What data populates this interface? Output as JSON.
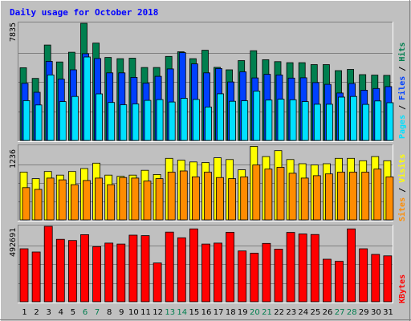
{
  "title": "Daily usage for October 2018",
  "colors": {
    "background": "#c0c0c0",
    "title": "#0000ff",
    "grid": "#808080",
    "hits": "#007f4f",
    "files": "#0040ff",
    "pages": "#00e0ff",
    "visits": "#ffff00",
    "sites": "#ff8c00",
    "kbytes": "#ff0000",
    "weekend_label": "#007f4f",
    "weekday_label": "#000000"
  },
  "chart_data": [
    {
      "type": "bar",
      "panel": "hits-files-pages",
      "categories": [
        "1",
        "2",
        "3",
        "4",
        "5",
        "6",
        "7",
        "8",
        "9",
        "10",
        "11",
        "12",
        "13",
        "14",
        "15",
        "16",
        "17",
        "18",
        "19",
        "20",
        "21",
        "22",
        "23",
        "24",
        "25",
        "26",
        "27",
        "28",
        "29",
        "30",
        "31"
      ],
      "ylim": [
        0,
        7835
      ],
      "max_label": "7835",
      "series": [
        {
          "name": "Hits",
          "values": [
            4860,
            4150,
            6380,
            5250,
            5900,
            7835,
            6510,
            5550,
            5470,
            5500,
            4880,
            4880,
            5620,
            5930,
            5470,
            6030,
            4890,
            4720,
            5340,
            6000,
            5400,
            5270,
            5200,
            5200,
            5070,
            5070,
            4670,
            4750,
            4400,
            4370,
            4350
          ]
        },
        {
          "name": "Files",
          "values": [
            3820,
            3220,
            5290,
            4100,
            4720,
            5800,
            5480,
            4520,
            4520,
            4220,
            3830,
            4290,
            4780,
            5870,
            5120,
            4520,
            4810,
            3910,
            4590,
            4180,
            4420,
            4380,
            4170,
            4190,
            3870,
            3750,
            3170,
            3810,
            3360,
            3470,
            3600
          ]
        },
        {
          "name": "Pages",
          "values": [
            2660,
            2370,
            4380,
            2600,
            2940,
            5580,
            3110,
            2540,
            2390,
            2440,
            2680,
            2730,
            2570,
            2820,
            2740,
            2240,
            3120,
            2620,
            2650,
            3300,
            2700,
            2760,
            2720,
            2600,
            2420,
            2420,
            2900,
            2940,
            2410,
            2640,
            2520
          ]
        }
      ]
    },
    {
      "type": "bar",
      "panel": "visits-sites",
      "categories": [
        "1",
        "2",
        "3",
        "4",
        "5",
        "6",
        "7",
        "8",
        "9",
        "10",
        "11",
        "12",
        "13",
        "14",
        "15",
        "16",
        "17",
        "18",
        "19",
        "20",
        "21",
        "22",
        "23",
        "24",
        "25",
        "26",
        "27",
        "28",
        "29",
        "30",
        "31"
      ],
      "ylim": [
        0,
        1236
      ],
      "max_label": "1236",
      "series": [
        {
          "name": "Visits",
          "values": [
            800,
            690,
            810,
            750,
            810,
            860,
            950,
            750,
            730,
            750,
            830,
            760,
            1030,
            1000,
            970,
            960,
            1040,
            1010,
            840,
            1230,
            1060,
            1160,
            1010,
            940,
            920,
            940,
            1030,
            1030,
            990,
            1060,
            990
          ]
        },
        {
          "name": "Sites",
          "values": [
            540,
            510,
            700,
            670,
            590,
            660,
            700,
            590,
            710,
            700,
            650,
            690,
            800,
            820,
            720,
            800,
            710,
            690,
            720,
            920,
            850,
            880,
            780,
            700,
            740,
            770,
            800,
            800,
            800,
            850,
            720
          ]
        }
      ]
    },
    {
      "type": "bar",
      "panel": "kbytes",
      "categories": [
        "1",
        "2",
        "3",
        "4",
        "5",
        "6",
        "7",
        "8",
        "9",
        "10",
        "11",
        "12",
        "13",
        "14",
        "15",
        "16",
        "17",
        "18",
        "19",
        "20",
        "21",
        "22",
        "23",
        "24",
        "25",
        "26",
        "27",
        "28",
        "29",
        "30",
        "31"
      ],
      "ylim": [
        0,
        492691
      ],
      "max_label": "492691",
      "series": [
        {
          "name": "KBytes",
          "values": [
            346000,
            325000,
            492691,
            408000,
            400000,
            438000,
            360000,
            383000,
            377000,
            435000,
            432000,
            253000,
            455000,
            418000,
            476000,
            377000,
            383000,
            454000,
            332000,
            317000,
            381000,
            344000,
            453000,
            443000,
            439000,
            278000,
            264000,
            476000,
            346000,
            309000,
            300000
          ]
        }
      ]
    }
  ],
  "legend": {
    "panel1": {
      "pages": "Pages",
      "sep1": " / ",
      "files": "Files",
      "sep2": " / ",
      "hits": "Hits"
    },
    "panel2": {
      "sites": "Sites",
      "sep": " / ",
      "visits": "Visits"
    },
    "panel3": {
      "kbytes": "KBytes"
    }
  },
  "weekend_days": [
    6,
    7,
    13,
    14,
    20,
    21,
    27,
    28
  ]
}
